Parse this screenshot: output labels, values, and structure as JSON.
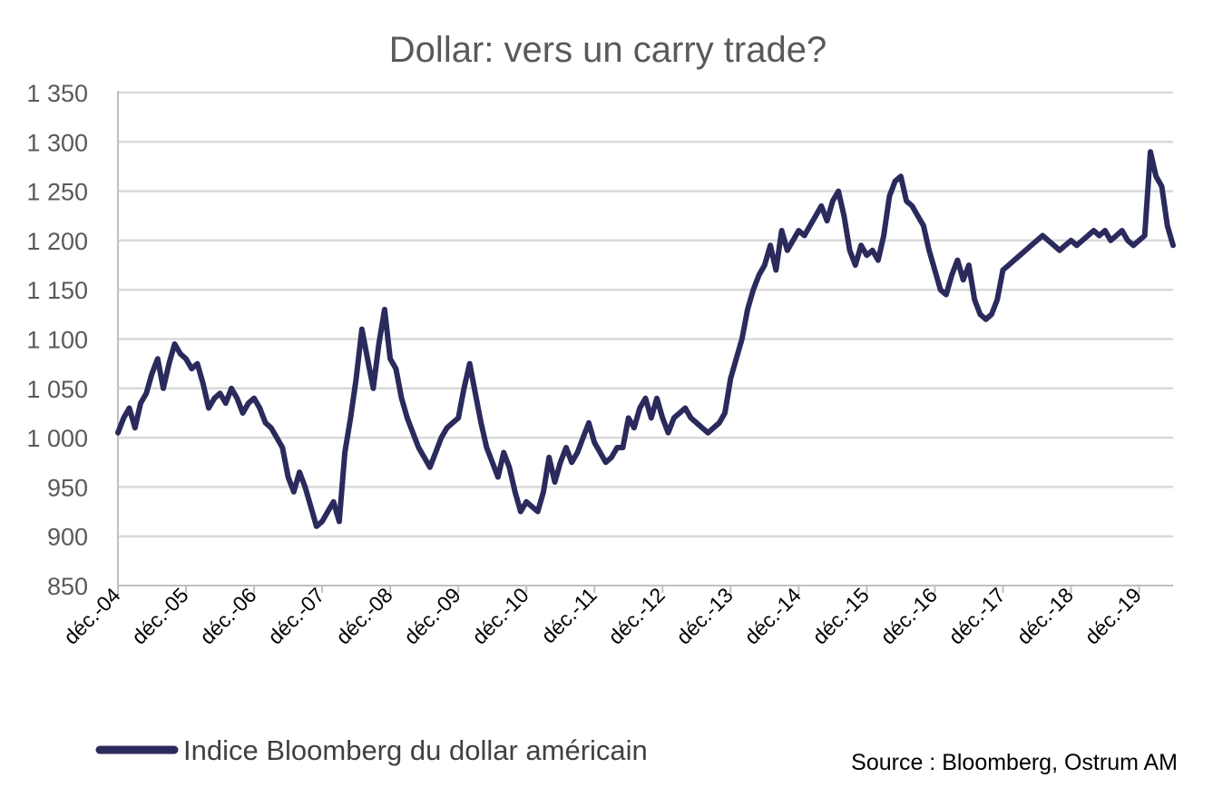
{
  "chart_data": {
    "type": "line",
    "title": "Dollar: vers un carry trade?",
    "xlabel": "",
    "ylabel": "",
    "ylim": [
      850,
      1350
    ],
    "yticks": [
      850,
      900,
      950,
      1000,
      1050,
      1100,
      1150,
      1200,
      1250,
      1300,
      1350
    ],
    "ytick_labels": [
      "850",
      "900",
      "950",
      "1 000",
      "1 050",
      "1 100",
      "1 150",
      "1 200",
      "1 250",
      "1 300",
      "1 350"
    ],
    "xtick_labels": [
      "déc.-04",
      "déc.-05",
      "déc.-06",
      "déc.-07",
      "déc.-08",
      "déc.-09",
      "déc.-10",
      "déc.-11",
      "déc.-12",
      "déc.-13",
      "déc.-14",
      "déc.-15",
      "déc.-16",
      "déc.-17",
      "déc.-18",
      "déc.-19"
    ],
    "x_range": [
      "2004-12",
      "2020-06"
    ],
    "grid": true,
    "legend_position": "bottom-left",
    "line_color": "#2b2a5c",
    "series": [
      {
        "name": "Indice Bloomberg du dollar américain",
        "x": [
          "2004-12",
          "2005-01",
          "2005-02",
          "2005-03",
          "2005-04",
          "2005-05",
          "2005-06",
          "2005-07",
          "2005-08",
          "2005-09",
          "2005-10",
          "2005-11",
          "2005-12",
          "2006-01",
          "2006-02",
          "2006-03",
          "2006-04",
          "2006-05",
          "2006-06",
          "2006-07",
          "2006-08",
          "2006-09",
          "2006-10",
          "2006-11",
          "2006-12",
          "2007-01",
          "2007-02",
          "2007-03",
          "2007-04",
          "2007-05",
          "2007-06",
          "2007-07",
          "2007-08",
          "2007-09",
          "2007-10",
          "2007-11",
          "2007-12",
          "2008-01",
          "2008-02",
          "2008-03",
          "2008-04",
          "2008-05",
          "2008-06",
          "2008-07",
          "2008-08",
          "2008-09",
          "2008-10",
          "2008-11",
          "2008-12",
          "2009-01",
          "2009-02",
          "2009-03",
          "2009-04",
          "2009-05",
          "2009-06",
          "2009-07",
          "2009-08",
          "2009-09",
          "2009-10",
          "2009-11",
          "2009-12",
          "2010-01",
          "2010-02",
          "2010-03",
          "2010-04",
          "2010-05",
          "2010-06",
          "2010-07",
          "2010-08",
          "2010-09",
          "2010-10",
          "2010-11",
          "2010-12",
          "2011-01",
          "2011-02",
          "2011-03",
          "2011-04",
          "2011-05",
          "2011-06",
          "2011-07",
          "2011-08",
          "2011-09",
          "2011-10",
          "2011-11",
          "2011-12",
          "2012-01",
          "2012-02",
          "2012-03",
          "2012-04",
          "2012-05",
          "2012-06",
          "2012-07",
          "2012-08",
          "2012-09",
          "2012-10",
          "2012-11",
          "2012-12",
          "2013-01",
          "2013-02",
          "2013-03",
          "2013-04",
          "2013-05",
          "2013-06",
          "2013-07",
          "2013-08",
          "2013-09",
          "2013-10",
          "2013-11",
          "2013-12",
          "2014-01",
          "2014-02",
          "2014-03",
          "2014-04",
          "2014-05",
          "2014-06",
          "2014-07",
          "2014-08",
          "2014-09",
          "2014-10",
          "2014-11",
          "2014-12",
          "2015-01",
          "2015-02",
          "2015-03",
          "2015-04",
          "2015-05",
          "2015-06",
          "2015-07",
          "2015-08",
          "2015-09",
          "2015-10",
          "2015-11",
          "2015-12",
          "2016-01",
          "2016-02",
          "2016-03",
          "2016-04",
          "2016-05",
          "2016-06",
          "2016-07",
          "2016-08",
          "2016-09",
          "2016-10",
          "2016-11",
          "2016-12",
          "2017-01",
          "2017-02",
          "2017-03",
          "2017-04",
          "2017-05",
          "2017-06",
          "2017-07",
          "2017-08",
          "2017-09",
          "2017-10",
          "2017-11",
          "2017-12",
          "2018-01",
          "2018-02",
          "2018-03",
          "2018-04",
          "2018-05",
          "2018-06",
          "2018-07",
          "2018-08",
          "2018-09",
          "2018-10",
          "2018-11",
          "2018-12",
          "2019-01",
          "2019-02",
          "2019-03",
          "2019-04",
          "2019-05",
          "2019-06",
          "2019-07",
          "2019-08",
          "2019-09",
          "2019-10",
          "2019-11",
          "2019-12",
          "2020-01",
          "2020-02",
          "2020-03",
          "2020-04",
          "2020-05",
          "2020-06"
        ],
        "values": [
          1005,
          1020,
          1030,
          1010,
          1035,
          1045,
          1065,
          1080,
          1050,
          1075,
          1095,
          1085,
          1080,
          1070,
          1075,
          1055,
          1030,
          1040,
          1045,
          1035,
          1050,
          1040,
          1025,
          1035,
          1040,
          1030,
          1015,
          1010,
          1000,
          990,
          960,
          945,
          965,
          950,
          930,
          910,
          915,
          925,
          935,
          915,
          985,
          1020,
          1060,
          1110,
          1080,
          1050,
          1095,
          1130,
          1080,
          1070,
          1040,
          1020,
          1005,
          990,
          980,
          970,
          985,
          1000,
          1010,
          1015,
          1020,
          1050,
          1075,
          1045,
          1015,
          990,
          975,
          960,
          985,
          970,
          945,
          925,
          935,
          930,
          925,
          945,
          980,
          955,
          975,
          990,
          975,
          985,
          1000,
          1015,
          995,
          985,
          975,
          980,
          990,
          990,
          1020,
          1010,
          1030,
          1040,
          1020,
          1040,
          1020,
          1005,
          1020,
          1025,
          1030,
          1020,
          1015,
          1010,
          1005,
          1010,
          1015,
          1025,
          1060,
          1080,
          1100,
          1130,
          1150,
          1165,
          1175,
          1195,
          1170,
          1210,
          1190,
          1200,
          1210,
          1205,
          1215,
          1225,
          1235,
          1220,
          1240,
          1250,
          1225,
          1190,
          1175,
          1195,
          1185,
          1190,
          1180,
          1205,
          1245,
          1260,
          1265,
          1240,
          1235,
          1225,
          1215,
          1190,
          1170,
          1150,
          1145,
          1165,
          1180,
          1160,
          1175,
          1140,
          1125,
          1120,
          1125,
          1140,
          1170,
          1175,
          1180,
          1185,
          1190,
          1195,
          1200,
          1205,
          1200,
          1195,
          1190,
          1195,
          1200,
          1195,
          1200,
          1205,
          1210,
          1205,
          1210,
          1200,
          1205,
          1210,
          1200,
          1195,
          1200,
          1205,
          1290,
          1265,
          1255,
          1215,
          1195
        ]
      }
    ],
    "legend": [
      "Indice Bloomberg du dollar américain"
    ],
    "source": "Source : Bloomberg, Ostrum AM"
  }
}
